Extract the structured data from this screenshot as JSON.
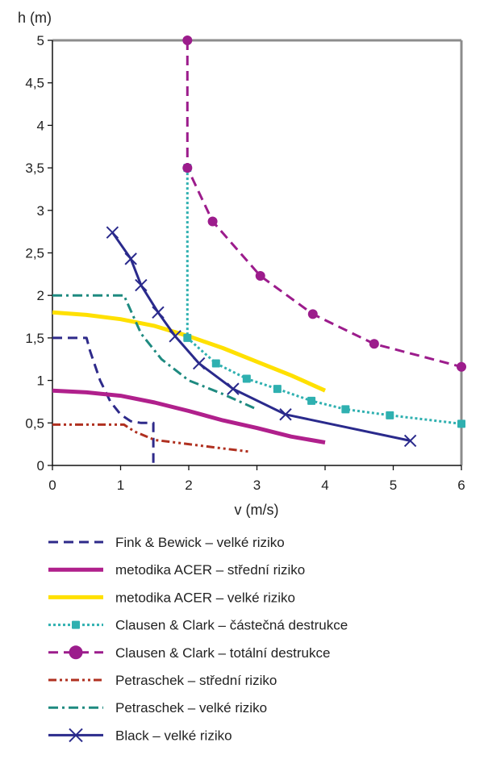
{
  "chart_data": {
    "type": "line",
    "xlabel": "v (m/s)",
    "ylabel": "h (m)",
    "xlim": [
      0,
      6
    ],
    "ylim": [
      0,
      5
    ],
    "x_ticks": [
      "0",
      "1",
      "2",
      "3",
      "4",
      "5",
      "6"
    ],
    "y_ticks": [
      "0",
      "0,5",
      "1",
      "1,5",
      "2",
      "2,5",
      "3",
      "3,5",
      "4",
      "4,5",
      "5"
    ],
    "grid": false,
    "legend_position": "bottom",
    "series": [
      {
        "name": "Fink & Bewick – velké riziko",
        "color": "#2e2a8a",
        "style": "dashed",
        "marker": "none",
        "points": [
          [
            0,
            1.5
          ],
          [
            0.5,
            1.5
          ],
          [
            0.55,
            1.35
          ],
          [
            0.7,
            1.0
          ],
          [
            0.85,
            0.75
          ],
          [
            1.0,
            0.6
          ],
          [
            1.15,
            0.52
          ],
          [
            1.3,
            0.5
          ],
          [
            1.48,
            0.5
          ],
          [
            1.48,
            0
          ]
        ]
      },
      {
        "name": "metodika ACER – střední riziko",
        "color": "#b0208c",
        "style": "solid",
        "marker": "none",
        "points": [
          [
            0,
            0.88
          ],
          [
            0.5,
            0.86
          ],
          [
            1.0,
            0.82
          ],
          [
            1.5,
            0.74
          ],
          [
            2.0,
            0.64
          ],
          [
            2.5,
            0.53
          ],
          [
            3.0,
            0.44
          ],
          [
            3.5,
            0.34
          ],
          [
            4.0,
            0.27
          ]
        ]
      },
      {
        "name": "metodika ACER – velké riziko",
        "color": "#ffe000",
        "style": "solid",
        "marker": "none",
        "points": [
          [
            0,
            1.8
          ],
          [
            0.5,
            1.77
          ],
          [
            1.0,
            1.72
          ],
          [
            1.5,
            1.64
          ],
          [
            2.0,
            1.52
          ],
          [
            2.5,
            1.38
          ],
          [
            3.0,
            1.22
          ],
          [
            3.5,
            1.06
          ],
          [
            4.0,
            0.88
          ]
        ]
      },
      {
        "name": "Clausen & Clark – částečná destrukce",
        "color": "#2fb0b0",
        "style": "dotted",
        "marker": "square",
        "points": [
          [
            1.98,
            3.5
          ],
          [
            1.98,
            1.5
          ],
          [
            2.4,
            1.2
          ],
          [
            2.85,
            1.02
          ],
          [
            3.3,
            0.9
          ],
          [
            3.8,
            0.76
          ],
          [
            4.3,
            0.66
          ],
          [
            4.95,
            0.59
          ],
          [
            6.0,
            0.49
          ]
        ]
      },
      {
        "name": "Clausen & Clark – totální destrukce",
        "color": "#9c1c8c",
        "style": "dashed",
        "marker": "circle",
        "points": [
          [
            1.98,
            5.0
          ],
          [
            1.98,
            3.5
          ],
          [
            2.35,
            2.87
          ],
          [
            3.05,
            2.23
          ],
          [
            3.82,
            1.78
          ],
          [
            4.72,
            1.43
          ],
          [
            6.0,
            1.16
          ]
        ]
      },
      {
        "name": "Petraschek – střední riziko",
        "color": "#b03020",
        "style": "dash-dot-dot",
        "marker": "none",
        "points": [
          [
            0,
            0.48
          ],
          [
            1.05,
            0.48
          ],
          [
            1.2,
            0.4
          ],
          [
            1.5,
            0.3
          ],
          [
            2.0,
            0.25
          ],
          [
            2.5,
            0.2
          ],
          [
            2.9,
            0.16
          ]
        ]
      },
      {
        "name": "Petraschek – velké riziko",
        "color": "#1e8a80",
        "style": "dash-dot",
        "marker": "none",
        "points": [
          [
            0,
            2.0
          ],
          [
            1.05,
            2.0
          ],
          [
            1.3,
            1.55
          ],
          [
            1.6,
            1.25
          ],
          [
            2.0,
            1.0
          ],
          [
            2.5,
            0.84
          ],
          [
            3.0,
            0.66
          ]
        ]
      },
      {
        "name": "Black – velké riziko",
        "color": "#2a2a8c",
        "style": "solid",
        "marker": "x",
        "points": [
          [
            0.88,
            2.74
          ],
          [
            1.15,
            2.43
          ],
          [
            1.3,
            2.12
          ],
          [
            1.55,
            1.8
          ],
          [
            1.8,
            1.52
          ],
          [
            2.15,
            1.2
          ],
          [
            2.65,
            0.9
          ],
          [
            3.42,
            0.6
          ],
          [
            5.25,
            0.29
          ]
        ]
      }
    ]
  }
}
